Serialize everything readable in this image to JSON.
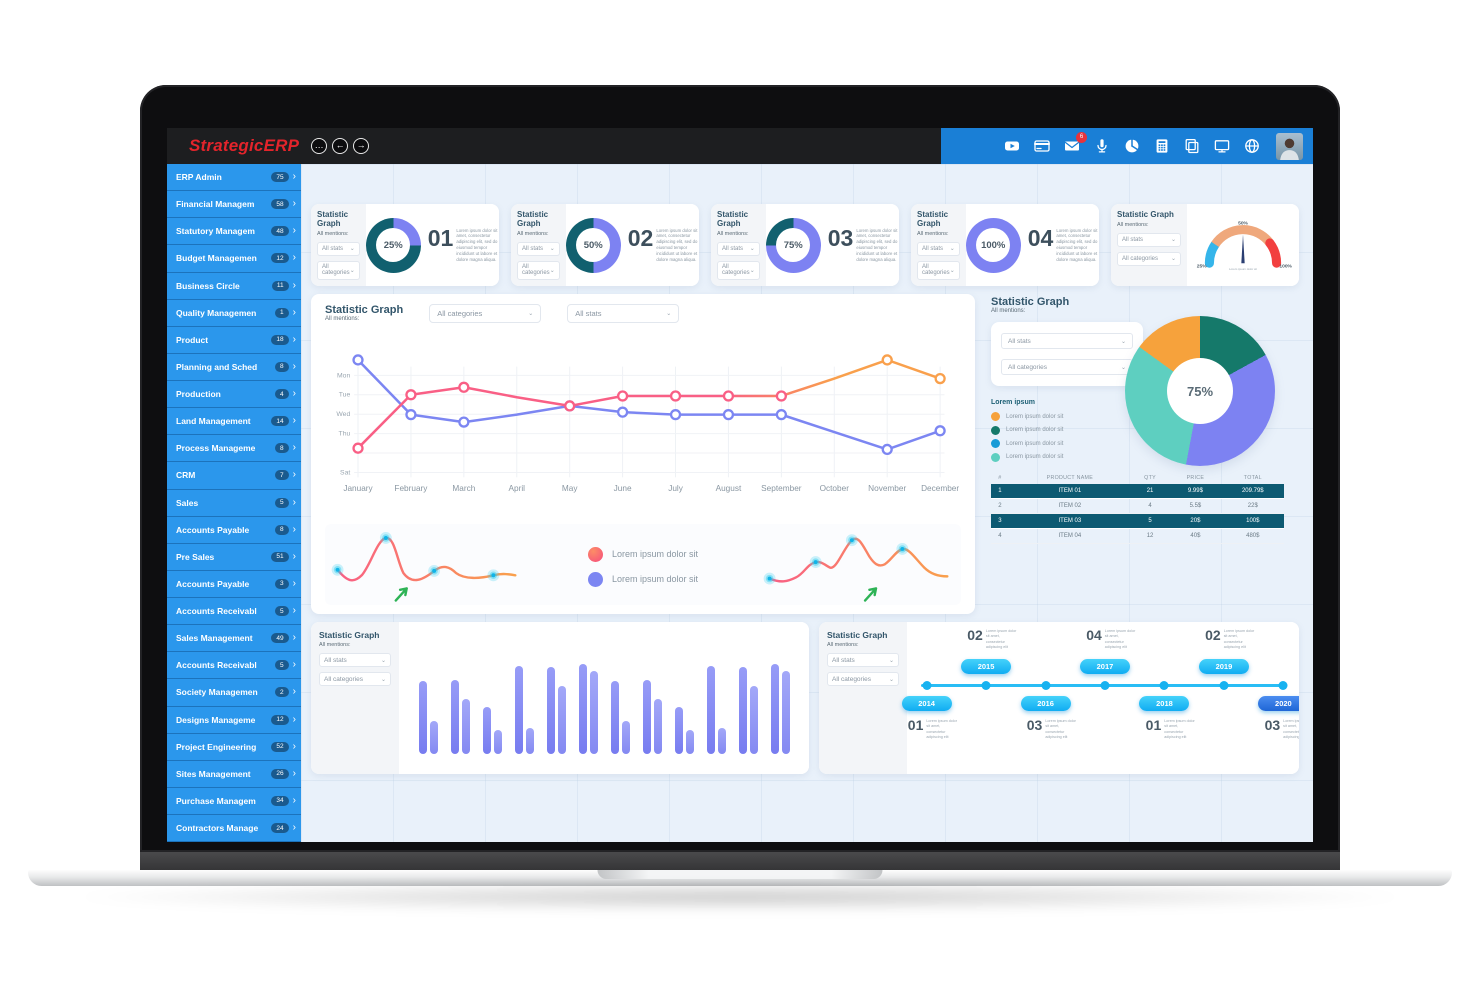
{
  "header": {
    "logo_part1": "Strategic",
    "logo_part2": "ERP",
    "nav_buttons": [
      "…",
      "←",
      "→"
    ],
    "icons": [
      "youtube-icon",
      "credit-card-icon",
      "mail-icon",
      "mic-icon",
      "pie-chart-icon",
      "calculator-icon",
      "copy-icon",
      "monitor-icon",
      "globe-icon"
    ],
    "mail_badge": "6"
  },
  "sidebar": {
    "items": [
      {
        "label": "ERP Admin",
        "count": "75"
      },
      {
        "label": "Financial Managem",
        "count": "58"
      },
      {
        "label": "Statutory Managem",
        "count": "48"
      },
      {
        "label": "Budget Managemen",
        "count": "12"
      },
      {
        "label": "Business Circle",
        "count": "11"
      },
      {
        "label": "Quality Managemen",
        "count": "1"
      },
      {
        "label": "Product",
        "count": "18"
      },
      {
        "label": "Planning and Sched",
        "count": "8"
      },
      {
        "label": "Production",
        "count": "4"
      },
      {
        "label": "Land Management",
        "count": "14"
      },
      {
        "label": "Process Manageme",
        "count": "8"
      },
      {
        "label": "CRM",
        "count": "7"
      },
      {
        "label": "Sales",
        "count": "5"
      },
      {
        "label": "Accounts Payable",
        "count": "8"
      },
      {
        "label": "Pre Sales",
        "count": "51"
      },
      {
        "label": "Accounts Payable",
        "count": "3"
      },
      {
        "label": "Accounts Receivabl",
        "count": "5"
      },
      {
        "label": "Sales Management",
        "count": "49"
      },
      {
        "label": "Accounts Receivabl",
        "count": "5"
      },
      {
        "label": "Society Managemen",
        "count": "2"
      },
      {
        "label": "Designs Manageme",
        "count": "12"
      },
      {
        "label": "Project Engineering",
        "count": "52"
      },
      {
        "label": "Sites Management",
        "count": "26"
      },
      {
        "label": "Purchase Managem",
        "count": "34"
      },
      {
        "label": "Contractors Manage",
        "count": "24"
      }
    ]
  },
  "common": {
    "card_title": "Statistic Graph",
    "card_subtitle": "All mentions:",
    "select_stats": "All stats",
    "select_categories": "All categories",
    "lorem_short": "Lorem ipsum dolor sit",
    "lorem_long": "Lorem ipsum dolor sit amet, consectetur adipiscing elit, sed do eiusmod tempor incididunt ut labore et dolore magna aliqua.",
    "legend_title": "Lorem ipsum"
  },
  "colors": {
    "value_ring": "#7d82f2",
    "rest_ring": "#11606f",
    "pink": "#f95f85",
    "orange": "#f9a04c",
    "blue_line": "#7c86f2",
    "cyan": "#1fbdf2",
    "green_arrow": "#2eb356",
    "table_highlight": "#0d5a72"
  },
  "chart_data": [
    {
      "id": "donut1",
      "type": "donut",
      "value": 25,
      "label": "25%",
      "number": "01"
    },
    {
      "id": "donut2",
      "type": "donut",
      "value": 50,
      "label": "50%",
      "number": "02"
    },
    {
      "id": "donut3",
      "type": "donut",
      "value": 75,
      "label": "75%",
      "number": "03"
    },
    {
      "id": "donut4",
      "type": "donut",
      "value": 100,
      "label": "100%",
      "number": "04"
    },
    {
      "id": "gauge",
      "type": "gauge",
      "tick_left": "25%",
      "tick_top": "50%",
      "tick_right": "100%",
      "segments": [
        {
          "color": "#35b5ea",
          "from": 180,
          "to": 146
        },
        {
          "color": "#efa87c",
          "from": 146,
          "to": 37
        },
        {
          "color": "#f23f3f",
          "from": 37,
          "to": 0
        }
      ],
      "caption": "Lorem ipsum dolor sit"
    },
    {
      "id": "main-line",
      "type": "line",
      "x": [
        "January",
        "February",
        "March",
        "April",
        "May",
        "June",
        "July",
        "August",
        "September",
        "October",
        "November",
        "December"
      ],
      "y_labels": [
        "Mon",
        "Tue",
        "Wed",
        "Thu",
        "",
        "Sat"
      ],
      "marker_skip": [
        3,
        9
      ],
      "series": [
        {
          "name": "series-pink-orange",
          "color": "#f95f85",
          "color_end": "#f9a04c",
          "values": [
            25,
            68,
            74,
            66,
            59,
            67,
            67,
            67,
            67,
            81,
            96,
            81
          ]
        },
        {
          "name": "series-blue",
          "color": "#7c86f2",
          "values": [
            96,
            52,
            46,
            52,
            59,
            54,
            52,
            52,
            52,
            38,
            24,
            39
          ]
        }
      ],
      "legend": [
        {
          "label": "Lorem ipsum dolor sit",
          "color": "pink-gradient"
        },
        {
          "label": "Lorem ipsum dolor sit",
          "color": "#7c86f2"
        }
      ]
    },
    {
      "id": "donut-large",
      "type": "donut",
      "center_label": "75%",
      "slices": [
        {
          "color": "#15796a",
          "pct": 17
        },
        {
          "color": "#7d82f2",
          "pct": 36
        },
        {
          "color": "#5ecfc0",
          "pct": 32
        },
        {
          "color": "#f6a23c",
          "pct": 15
        }
      ],
      "legend_colors": [
        "#f6a23c",
        "#15796a",
        "#189bd7",
        "#5ecfc0"
      ]
    },
    {
      "id": "items-table",
      "type": "table",
      "headers": [
        "#",
        "PRODUCT NAME",
        "QTY",
        "PRICE",
        "TOTAL"
      ],
      "rows": [
        [
          "1",
          "ITEM 01",
          "21",
          "9.99$",
          "209.79$"
        ],
        [
          "2",
          "ITEM 02",
          "4",
          "5.5$",
          "22$"
        ],
        [
          "3",
          "ITEM 03",
          "5",
          "20$",
          "100$"
        ],
        [
          "4",
          "ITEM 04",
          "12",
          "40$",
          "480$"
        ]
      ],
      "highlight_rows": [
        0,
        2
      ]
    },
    {
      "id": "bars",
      "type": "bar",
      "series": [
        {
          "name": "tall",
          "values": [
            62,
            63,
            40,
            75,
            74,
            76,
            62,
            63,
            40,
            75,
            74,
            76
          ]
        },
        {
          "name": "short",
          "values": [
            28,
            47,
            20,
            22,
            58,
            70,
            28,
            47,
            20,
            22,
            58,
            70
          ]
        }
      ]
    },
    {
      "id": "timeline",
      "type": "timeline",
      "event_text": "Lorem ipsum dolor sit amet, consectetur adipiscing elit",
      "events": [
        {
          "year": "2014",
          "number": "01",
          "side": "bottom"
        },
        {
          "year": "2015",
          "number": "02",
          "side": "top"
        },
        {
          "year": "2016",
          "number": "03",
          "side": "bottom"
        },
        {
          "year": "2017",
          "number": "04",
          "side": "top"
        },
        {
          "year": "2018",
          "number": "01",
          "side": "bottom"
        },
        {
          "year": "2019",
          "number": "02",
          "side": "top"
        },
        {
          "year": "2020",
          "number": "03",
          "side": "bottom",
          "accent": true
        }
      ]
    }
  ]
}
